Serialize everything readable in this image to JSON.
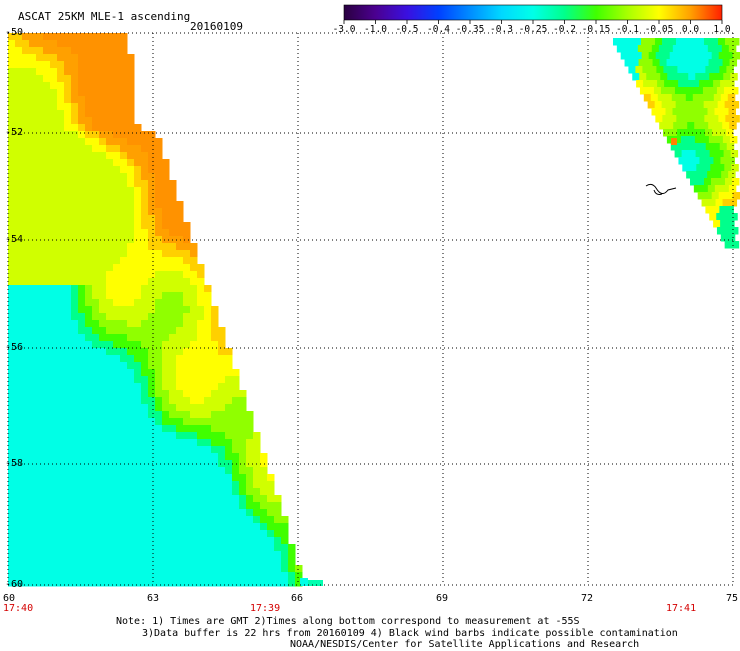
{
  "header": {
    "title": "ASCAT 25KM MLE-1 ascending",
    "date": "20160109"
  },
  "colorbar": {
    "tick_labels": [
      "-3.0",
      "-1.0",
      "-0.5",
      "-0.4",
      "-0.35",
      "-0.3",
      "-0.25",
      "-0.2",
      "-0.15",
      "-0.1",
      "-0.05",
      "0.0",
      "1.0"
    ],
    "colors": [
      "#2a0040",
      "#4b0090",
      "#3a10e0",
      "#0040ff",
      "#008cff",
      "#00d8ff",
      "#00ffe8",
      "#00ff8c",
      "#40ff00",
      "#a8ff00",
      "#ffff00",
      "#ffa000",
      "#ff2000"
    ]
  },
  "map": {
    "lon_ticks": [
      "60",
      "63",
      "66",
      "69",
      "72",
      "75"
    ],
    "lat_ticks": [
      "-50",
      "-52",
      "-54",
      "-56",
      "-58",
      "-60"
    ],
    "lon_range": [
      60,
      75
    ],
    "lat_range": [
      -50,
      -60
    ],
    "pass_times": [
      {
        "text": "17:40",
        "lon": 60
      },
      {
        "text": "17:39",
        "lon": 65.5
      },
      {
        "text": "17:41",
        "lon": 73.7
      }
    ]
  },
  "notes": {
    "line1": "Note: 1) Times are GMT 2)Times along bottom correspond to measurement at -55S",
    "line2": "3)Data buffer is 22 hrs from 20160109 4) Black wind barbs indicate possible contamination",
    "line3": "NOAA/NESDIS/Center for Satellite Applications and Research"
  },
  "palette": {
    "orange": "#ff9900",
    "yellow": "#ffff00",
    "green": "#5cff00",
    "cyan": "#00ffe6",
    "time_red": "#d40000"
  }
}
